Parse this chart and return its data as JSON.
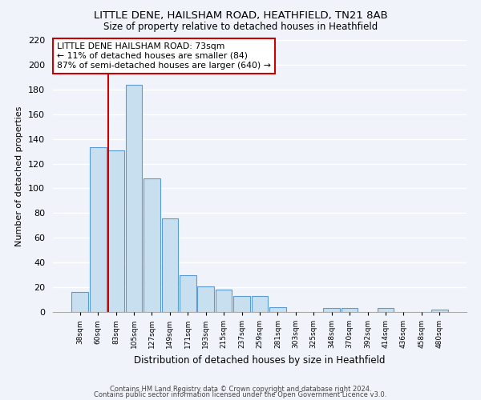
{
  "title": "LITTLE DENE, HAILSHAM ROAD, HEATHFIELD, TN21 8AB",
  "subtitle": "Size of property relative to detached houses in Heathfield",
  "xlabel": "Distribution of detached houses by size in Heathfield",
  "ylabel": "Number of detached properties",
  "bar_color": "#c8dff0",
  "bar_edge_color": "#5b9bd5",
  "categories": [
    "38sqm",
    "60sqm",
    "83sqm",
    "105sqm",
    "127sqm",
    "149sqm",
    "171sqm",
    "193sqm",
    "215sqm",
    "237sqm",
    "259sqm",
    "281sqm",
    "303sqm",
    "325sqm",
    "348sqm",
    "370sqm",
    "392sqm",
    "414sqm",
    "436sqm",
    "458sqm",
    "480sqm"
  ],
  "values": [
    16,
    133,
    131,
    184,
    108,
    76,
    30,
    21,
    18,
    13,
    13,
    4,
    0,
    0,
    3,
    3,
    0,
    3,
    0,
    0,
    2
  ],
  "vline_color": "#cc0000",
  "vline_pos": 1.565,
  "annotation_text": "LITTLE DENE HAILSHAM ROAD: 73sqm\n← 11% of detached houses are smaller (84)\n87% of semi-detached houses are larger (640) →",
  "annotation_box_color": "white",
  "annotation_box_edge": "#cc0000",
  "ylim": [
    0,
    220
  ],
  "yticks": [
    0,
    20,
    40,
    60,
    80,
    100,
    120,
    140,
    160,
    180,
    200,
    220
  ],
  "footer1": "Contains HM Land Registry data © Crown copyright and database right 2024.",
  "footer2": "Contains public sector information licensed under the Open Government Licence v3.0.",
  "bg_color": "#f0f4fa",
  "grid_color": "#ffffff",
  "title_fontsize": 9.5,
  "subtitle_fontsize": 8.5
}
